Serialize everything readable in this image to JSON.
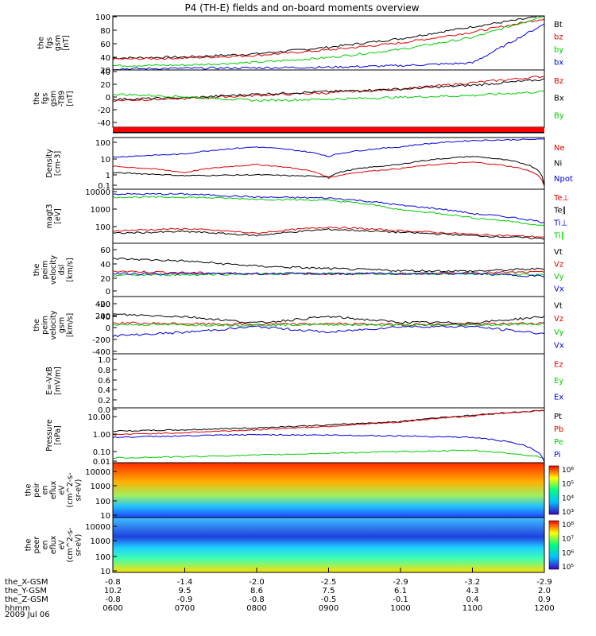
{
  "title": "P4 (TH-E) fields and on-board moments overview",
  "date": "2009 Jul 06",
  "colors": {
    "black": "#000000",
    "red": "#dd0000",
    "green": "#00cc00",
    "blue": "#0000dd",
    "flag_red": "#ff0000"
  },
  "panels": [
    {
      "id": "fgs-gsm",
      "ylabel": [
        "the",
        "fgs",
        "gsm",
        "[nT]"
      ],
      "ticks": [
        "100",
        "80",
        "60",
        "40",
        "20"
      ],
      "legend": [
        {
          "label": "Bt",
          "color": "black"
        },
        {
          "label": "bz",
          "color": "red"
        },
        {
          "label": "by",
          "color": "green"
        },
        {
          "label": "bx",
          "color": "blue"
        }
      ]
    },
    {
      "id": "fgs-gsm-dt",
      "ylabel": [
        "the",
        "fgs",
        "gsm",
        "-T89",
        "[nT]"
      ],
      "ticks": [
        "40",
        "20",
        "0",
        "-20",
        "-40"
      ],
      "legend": [
        {
          "label": "Bz",
          "color": "red"
        },
        {
          "label": "Bx",
          "color": "black"
        },
        {
          "label": "By",
          "color": "green"
        }
      ]
    },
    {
      "id": "density",
      "ylabel": [
        "Density",
        "[cm-3]"
      ],
      "ticks": [
        "100",
        "10",
        "1",
        "0.1"
      ],
      "legend": [
        {
          "label": "Ne",
          "color": "red"
        },
        {
          "label": "Ni",
          "color": "black"
        },
        {
          "label": "Npot",
          "color": "blue"
        }
      ]
    },
    {
      "id": "temperature",
      "ylabel": [
        "magt3",
        "[eV]"
      ],
      "ticks": [
        "10000",
        "1000",
        "100"
      ],
      "legend": [
        {
          "label": "Te⊥",
          "color": "red"
        },
        {
          "label": "Te∥",
          "color": "black"
        },
        {
          "label": "Ti⊥",
          "color": "blue"
        },
        {
          "label": "Ti∥",
          "color": "green"
        }
      ]
    },
    {
      "id": "peim-velocity-dsl",
      "ylabel": [
        "the",
        "peim",
        "velocity",
        "dsl",
        "[km/s]"
      ],
      "ticks": [
        "60",
        "40",
        "20",
        "0",
        "-20",
        "-40"
      ],
      "legend": [
        {
          "label": "Vt",
          "color": "black"
        },
        {
          "label": "Vz",
          "color": "red"
        },
        {
          "label": "Vy",
          "color": "green"
        },
        {
          "label": "Vx",
          "color": "blue"
        }
      ]
    },
    {
      "id": "peim-velocity-gsm",
      "ylabel": [
        "the",
        "peim",
        "velocity",
        "gsm",
        "[km/s]"
      ],
      "ticks": [
        "400",
        "200",
        "0",
        "-200",
        "-400"
      ],
      "legend": [
        {
          "label": "Vt",
          "color": "black"
        },
        {
          "label": "Vz",
          "color": "red"
        },
        {
          "label": "Vy",
          "color": "green"
        },
        {
          "label": "Vx",
          "color": "blue"
        }
      ]
    },
    {
      "id": "e-field",
      "ylabel": [
        "E=-VxB",
        "[mV/m]"
      ],
      "ticks": [
        "1.0",
        "0.8",
        "0.6",
        "0.4",
        "0.2",
        "0.0"
      ],
      "legend": [
        {
          "label": "Ez",
          "color": "red"
        },
        {
          "label": "Ey",
          "color": "green"
        },
        {
          "label": "Ex",
          "color": "blue"
        }
      ]
    },
    {
      "id": "pressure",
      "ylabel": [
        "Pressure",
        "[nPa]"
      ],
      "ticks": [
        "10.00",
        "1.00",
        "0.10",
        "0.01"
      ],
      "legend": [
        {
          "label": "Pt",
          "color": "black"
        },
        {
          "label": "Pb",
          "color": "red"
        },
        {
          "label": "Pe",
          "color": "green"
        },
        {
          "label": "Pi",
          "color": "blue"
        }
      ]
    },
    {
      "id": "peir-eflux",
      "ylabel": [
        "the",
        "peir",
        "en",
        "eflux",
        "eV",
        "(cm^2-s-",
        "sr-eV)"
      ],
      "ticks": [
        "10000",
        "1000",
        "100",
        "10"
      ],
      "colorbar": [
        "10⁶",
        "10⁵",
        "10⁴",
        "10³"
      ]
    },
    {
      "id": "peer-eflux",
      "ylabel": [
        "the",
        "peer",
        "en",
        "eflux",
        "eV",
        "(cm^2-s-",
        "sr-eV)"
      ],
      "ticks": [
        "10000",
        "1000",
        "100",
        "10"
      ],
      "colorbar": [
        "10⁸",
        "10⁷",
        "10⁶",
        "10⁵"
      ]
    }
  ],
  "xaxis": {
    "rows": [
      {
        "label": "the_X-GSM",
        "values": [
          "-0.8",
          "-1.4",
          "-2.0",
          "-2.5",
          "-2.9",
          "-3.2",
          "-2.9"
        ]
      },
      {
        "label": "the_Y-GSM",
        "values": [
          "10.2",
          "9.5",
          "8.6",
          "7.5",
          "6.1",
          "4.3",
          "2.0"
        ]
      },
      {
        "label": "the_Z-GSM",
        "values": [
          "-0.8",
          "-0.9",
          "-0.8",
          "-0.5",
          "-0.1",
          "0.4",
          "0.9"
        ]
      },
      {
        "label": "hhmm",
        "values": [
          "0600",
          "0700",
          "0800",
          "0900",
          "1000",
          "1100",
          "1200"
        ]
      }
    ]
  },
  "chart_data": [
    {
      "type": "line",
      "title": "P4 (TH-E) fields and on-board moments overview",
      "ylabel": "the fgs gsm [nT]",
      "ylim": [
        0,
        100
      ],
      "x": [
        "0600",
        "0700",
        "0800",
        "0900",
        "1000",
        "1100",
        "1200"
      ],
      "series": [
        {
          "name": "Bt",
          "values": [
            22,
            24,
            30,
            42,
            58,
            80,
            100
          ]
        },
        {
          "name": "bz",
          "values": [
            20,
            22,
            27,
            37,
            50,
            70,
            95
          ]
        },
        {
          "name": "by",
          "values": [
            8,
            9,
            14,
            23,
            38,
            60,
            100
          ]
        },
        {
          "name": "bx",
          "values": [
            2,
            3,
            4,
            5,
            8,
            13,
            85
          ]
        }
      ]
    },
    {
      "type": "line",
      "ylabel": "the fgs gsm-T89 [nT]",
      "ylim": [
        -50,
        40
      ],
      "x": [
        "0600",
        "0700",
        "0800",
        "0900",
        "1000",
        "1100",
        "1200"
      ],
      "series": [
        {
          "name": "Bz",
          "values": [
            -8,
            -5,
            0,
            4,
            10,
            20,
            30
          ]
        },
        {
          "name": "Bx",
          "values": [
            -6,
            -4,
            2,
            6,
            10,
            16,
            25
          ]
        },
        {
          "name": "By",
          "values": [
            2,
            -2,
            -8,
            -6,
            -3,
            0,
            6
          ]
        }
      ]
    },
    {
      "type": "line",
      "ylabel": "Density [cm-3]",
      "ylim": [
        0.03,
        200
      ],
      "yscale": "log",
      "x": [
        "0600",
        "0700",
        "0800",
        "0900",
        "1000",
        "1100",
        "1200"
      ],
      "series": [
        {
          "name": "Ne",
          "values": [
            1.5,
            0.5,
            2.0,
            0.2,
            1.0,
            3.0,
            0.05
          ]
        },
        {
          "name": "Ni",
          "values": [
            0.5,
            0.3,
            0.35,
            0.25,
            2.0,
            8.0,
            0.05
          ]
        },
        {
          "name": "Npot",
          "values": [
            7,
            12,
            40,
            8,
            40,
            120,
            150
          ]
        }
      ]
    },
    {
      "type": "line",
      "ylabel": "magt3 [eV]",
      "ylim": [
        30,
        12000
      ],
      "yscale": "log",
      "x": [
        "0600",
        "0700",
        "0800",
        "0900",
        "1000",
        "1100",
        "1200"
      ],
      "series": [
        {
          "name": "Te⊥",
          "values": [
            120,
            150,
            90,
            180,
            120,
            80,
            60
          ]
        },
        {
          "name": "Te∥",
          "values": [
            90,
            110,
            70,
            140,
            100,
            70,
            50
          ]
        },
        {
          "name": "Ti⊥",
          "values": [
            7000,
            7000,
            5000,
            4500,
            2000,
            800,
            300
          ]
        },
        {
          "name": "Ti∥",
          "values": [
            5000,
            5000,
            4000,
            3500,
            1200,
            500,
            200
          ]
        }
      ]
    },
    {
      "type": "line",
      "ylabel": "the peim velocity dsl [km/s]",
      "ylim": [
        -45,
        60
      ],
      "x": [
        "0600",
        "0700",
        "0800",
        "0900",
        "1000",
        "1100",
        "1200"
      ],
      "series": [
        {
          "name": "Vt",
          "values": [
            30,
            25,
            15,
            10,
            6,
            5,
            10
          ]
        },
        {
          "name": "Vz",
          "values": [
            5,
            2,
            0,
            0,
            0,
            2,
            3
          ]
        },
        {
          "name": "Vy",
          "values": [
            -3,
            -2,
            0,
            0,
            0,
            0,
            -2
          ]
        },
        {
          "name": "Vx",
          "values": [
            0,
            0,
            0,
            0,
            0,
            0,
            -5
          ]
        }
      ]
    },
    {
      "type": "line",
      "ylabel": "the peim velocity gsm [km/s]",
      "ylim": [
        -400,
        400
      ],
      "x": [
        "0600",
        "0700",
        "0800",
        "0900",
        "1000",
        "1100",
        "1200"
      ],
      "series": [
        {
          "name": "Vt",
          "values": [
            150,
            120,
            30,
            120,
            40,
            30,
            120
          ]
        },
        {
          "name": "Vz",
          "values": [
            30,
            20,
            10,
            20,
            10,
            10,
            30
          ]
        },
        {
          "name": "Vy",
          "values": [
            10,
            5,
            0,
            10,
            0,
            0,
            20
          ]
        },
        {
          "name": "Vx",
          "values": [
            -150,
            -100,
            -20,
            -100,
            -20,
            -20,
            -120
          ]
        }
      ]
    },
    {
      "type": "line",
      "ylabel": "E=-VxB [mV/m]",
      "ylim": [
        0,
        1
      ],
      "x": [],
      "series": []
    },
    {
      "type": "line",
      "ylabel": "Pressure [nPa]",
      "ylim": [
        0.005,
        15
      ],
      "yscale": "log",
      "x": [
        "0600",
        "0700",
        "0800",
        "0900",
        "1000",
        "1100",
        "1200"
      ],
      "series": [
        {
          "name": "Pt",
          "values": [
            0.5,
            0.6,
            0.8,
            1.2,
            2.0,
            5.0,
            10.0
          ]
        },
        {
          "name": "Pb",
          "values": [
            0.3,
            0.4,
            0.6,
            1.0,
            1.8,
            4.5,
            10.0
          ]
        },
        {
          "name": "Pe",
          "values": [
            0.01,
            0.012,
            0.015,
            0.02,
            0.025,
            0.03,
            0.01
          ]
        },
        {
          "name": "Pi",
          "values": [
            0.2,
            0.25,
            0.3,
            0.28,
            0.25,
            0.2,
            0.005
          ]
        }
      ]
    },
    {
      "type": "heatmap",
      "ylabel": "the peir en eflux eV (cm^2-s-sr-eV)",
      "yscale": "log",
      "ylim": [
        7,
        30000
      ],
      "colorbar_ticks": [
        "10³",
        "10⁴",
        "10⁵",
        "10⁶"
      ]
    },
    {
      "type": "heatmap",
      "ylabel": "the peer en eflux eV (cm^2-s-sr-eV)",
      "yscale": "log",
      "ylim": [
        7,
        30000
      ],
      "colorbar_ticks": [
        "10⁵",
        "10⁶",
        "10⁷",
        "10⁸"
      ]
    }
  ]
}
